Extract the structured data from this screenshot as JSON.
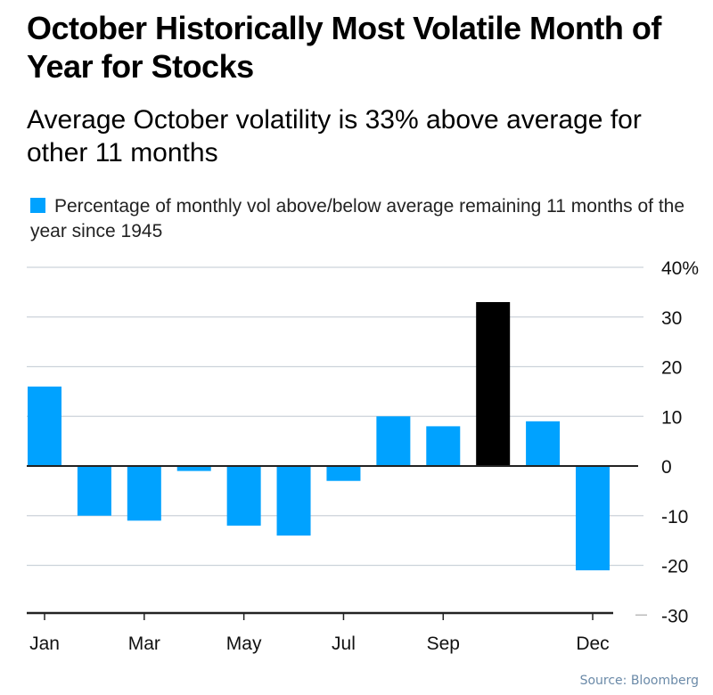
{
  "title": "October Historically Most Volatile Month of Year for Stocks",
  "subtitle": "Average October volatility is 33% above average for other 11 months",
  "source": "Source: Bloomberg",
  "chart_data": {
    "type": "bar",
    "categories": [
      "Jan",
      "Feb",
      "Mar",
      "Apr",
      "May",
      "Jun",
      "Jul",
      "Aug",
      "Sep",
      "Oct",
      "Nov",
      "Dec"
    ],
    "x_tick_labels": [
      "Jan",
      "Mar",
      "May",
      "Jul",
      "Sep",
      "Dec"
    ],
    "series": [
      {
        "name": "Percentage of monthly vol above/below average remaining 11 months of the year since 1945",
        "values": [
          16,
          -10,
          -11,
          -1,
          -12,
          -14,
          -3,
          10,
          8,
          33,
          9,
          -21
        ]
      }
    ],
    "highlight": {
      "category": "Oct",
      "color": "#000000"
    },
    "bar_color": "#00a2ff",
    "ylim": [
      -30,
      40
    ],
    "y_ticks": [
      40,
      30,
      20,
      10,
      0,
      -10,
      -20,
      -30
    ],
    "y_tick_labels": [
      "40%",
      "30",
      "20",
      "10",
      "0",
      "-10",
      "-20",
      "-30"
    ],
    "grid": true,
    "legend_placement": "top-left"
  }
}
